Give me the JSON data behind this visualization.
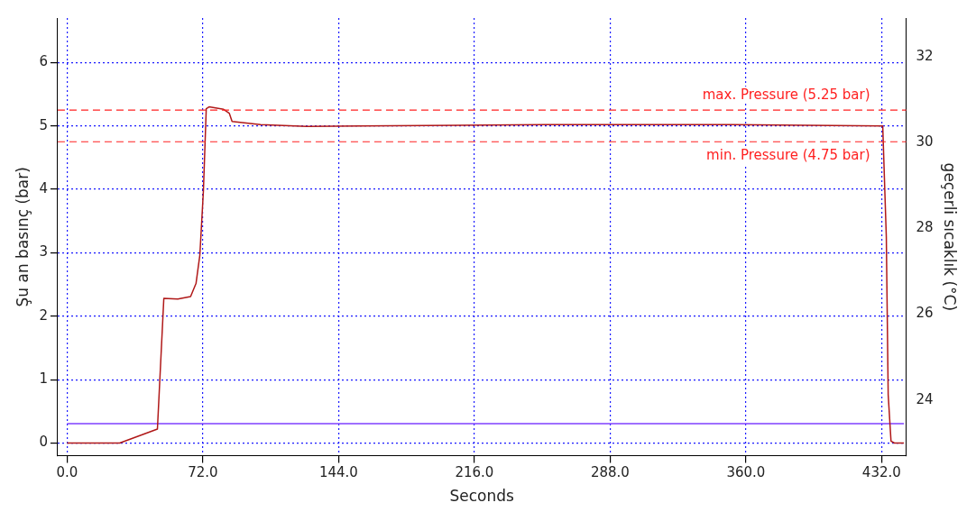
{
  "chart_data": {
    "type": "line",
    "xlabel": "Seconds",
    "ylabel": "Şu an basınç (bar)",
    "y2label": "geçerli sıcaklık (°C)",
    "xlim": [
      -5,
      445
    ],
    "xticks": [
      {
        "value": 0,
        "label": "0.0"
      },
      {
        "value": 72,
        "label": "72.0"
      },
      {
        "value": 144,
        "label": "144.0"
      },
      {
        "value": 216,
        "label": "216.0"
      },
      {
        "value": 288,
        "label": "288.0"
      },
      {
        "value": 360,
        "label": "360.0"
      },
      {
        "value": 432,
        "label": "432.0"
      }
    ],
    "ylim": [
      -0.2,
      6.7
    ],
    "yticks": [
      0,
      1,
      2,
      3,
      4,
      5,
      6
    ],
    "y2lim": [
      22.7,
      32.9
    ],
    "y2ticks": [
      24,
      26,
      28,
      30,
      32
    ],
    "grid": true,
    "legend": false,
    "marker": "none",
    "line_style": "solid",
    "ref_lines": [
      {
        "axis": "y",
        "value": 5.25,
        "label": "max. Pressure (5.25 bar)",
        "color": "#ff2020",
        "line_style": "dashed"
      },
      {
        "axis": "y",
        "value": 4.75,
        "label": "min. Pressure (4.75 bar)",
        "color": "#ff2020",
        "line_style": "dashed"
      }
    ],
    "series": [
      {
        "color": "#b01818",
        "x": [
          0,
          27.9,
          47.9,
          51.3,
          58.7,
          65.5,
          68.4,
          70.4,
          72.3,
          73.8,
          75.3,
          83,
          86,
          87.5,
          102.6,
          127,
          156,
          254,
          352,
          432.6,
          434.5,
          435.5,
          437,
          438.8,
          443.8
        ],
        "values": [
          0,
          0,
          0.22,
          2.28,
          2.27,
          2.31,
          2.52,
          2.96,
          3.98,
          5.27,
          5.3,
          5.26,
          5.2,
          5.07,
          5.02,
          4.99,
          5.0,
          5.02,
          5.02,
          5.0,
          3.25,
          0.76,
          0.03,
          0,
          0
        ]
      },
      {
        "color": "#7f3fff",
        "axis": "y2",
        "x": [
          0,
          443.8
        ],
        "values": [
          23.45,
          23.45
        ]
      }
    ]
  }
}
